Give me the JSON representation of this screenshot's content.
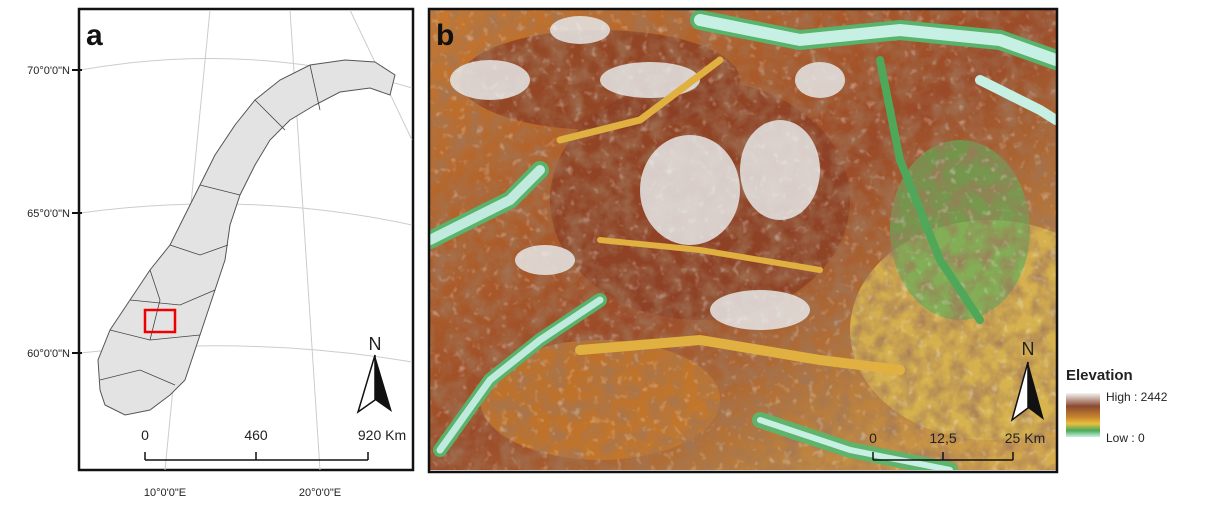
{
  "panels": {
    "a": {
      "label": "a",
      "latitudes": [
        "70°0'0\"N",
        "65°0'0\"N",
        "60°0'0\"N"
      ],
      "longitudes": [
        "10°0'0\"E",
        "20°0'0\"E"
      ],
      "scale": [
        "0",
        "460",
        "920 Km"
      ],
      "north": "N"
    },
    "b": {
      "label": "b",
      "scale": [
        "0",
        "12,5",
        "25 Km"
      ],
      "north": "N",
      "legend": {
        "title": "Elevation",
        "high": "High : 2442",
        "low": "Low : 0"
      }
    }
  }
}
